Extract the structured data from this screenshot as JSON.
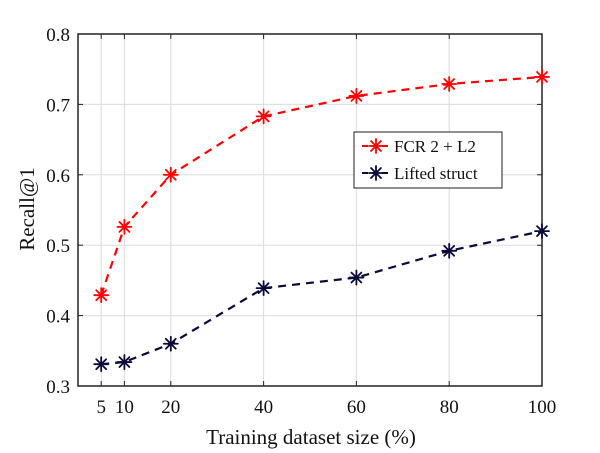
{
  "chart_data": {
    "type": "line",
    "title": "",
    "xlabel": "Training dataset size (%)",
    "ylabel": "Recall@1",
    "xlim": [
      0,
      100
    ],
    "ylim": [
      0.3,
      0.8
    ],
    "xticks": [
      5,
      10,
      20,
      40,
      60,
      80,
      100
    ],
    "yticks": [
      0.3,
      0.4,
      0.5,
      0.6,
      0.7,
      0.8
    ],
    "grid": true,
    "legend_position": "upper-right",
    "x": [
      5,
      10,
      20,
      40,
      60,
      80,
      100
    ],
    "series": [
      {
        "name": "FCR 2 + L2",
        "color": "#ff0000",
        "marker": "asterisk",
        "line_style": "dashed",
        "values": [
          0.429,
          0.526,
          0.6,
          0.683,
          0.712,
          0.729,
          0.739
        ]
      },
      {
        "name": "Lifted struct",
        "color": "#0a0a3a",
        "marker": "asterisk",
        "line_style": "dashed",
        "values": [
          0.331,
          0.334,
          0.36,
          0.439,
          0.454,
          0.492,
          0.52
        ]
      }
    ]
  }
}
